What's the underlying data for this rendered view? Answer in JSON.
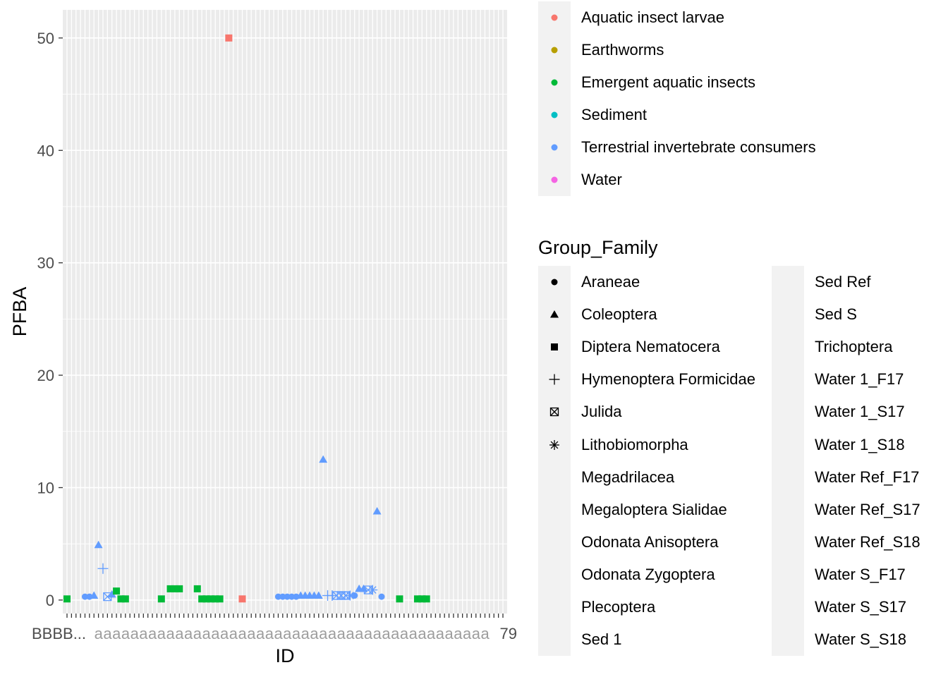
{
  "chart_data": {
    "type": "scatter",
    "xlabel": "ID",
    "ylabel": "PFBA",
    "ylim": [
      -1.2,
      52.5
    ],
    "y_ticks": [
      0,
      10,
      20,
      30,
      40,
      50
    ],
    "x_category_count": 98,
    "x_tick_labels_note": "overlapping illegible category labels",
    "x_tick_labels_visible": "BBBB...",
    "x_tick_label_end": "79",
    "grid": true,
    "panel_background": "#ebebeb",
    "color_legend": {
      "title": "",
      "entries": [
        {
          "label": "Aquatic insect larvae",
          "color": "#F8766D"
        },
        {
          "label": "Earthworms",
          "color": "#B79F00"
        },
        {
          "label": "Emergent aquatic insects",
          "color": "#00BA38"
        },
        {
          "label": "Sediment",
          "color": "#00BFC4"
        },
        {
          "label": "Terrestrial invertebrate consumers",
          "color": "#619CFF"
        },
        {
          "label": "Water",
          "color": "#F564E3"
        }
      ]
    },
    "shape_legend": {
      "title": "Group_Family",
      "entries": [
        {
          "label": "Araneae",
          "shape": "circle"
        },
        {
          "label": "Coleoptera",
          "shape": "triangle"
        },
        {
          "label": "Diptera Nematocera",
          "shape": "square"
        },
        {
          "label": "Hymenoptera Formicidae",
          "shape": "plus"
        },
        {
          "label": "Julida",
          "shape": "boxcross"
        },
        {
          "label": "Lithobiomorpha",
          "shape": "asterisk"
        },
        {
          "label": "Megadrilacea",
          "shape": "none"
        },
        {
          "label": "Megaloptera Sialidae",
          "shape": "none"
        },
        {
          "label": "Odonata Anisoptera",
          "shape": "none"
        },
        {
          "label": "Odonata Zygoptera",
          "shape": "none"
        },
        {
          "label": "Plecoptera",
          "shape": "none"
        },
        {
          "label": "Sed 1",
          "shape": "none"
        },
        {
          "label": "Sed Ref",
          "shape": "none"
        },
        {
          "label": "Sed S",
          "shape": "none"
        },
        {
          "label": "Trichoptera",
          "shape": "none"
        },
        {
          "label": "Water 1_F17",
          "shape": "none"
        },
        {
          "label": "Water 1_S17",
          "shape": "none"
        },
        {
          "label": "Water 1_S18",
          "shape": "none"
        },
        {
          "label": "Water Ref_F17",
          "shape": "none"
        },
        {
          "label": "Water Ref_S17",
          "shape": "none"
        },
        {
          "label": "Water Ref_S18",
          "shape": "none"
        },
        {
          "label": "Water S_F17",
          "shape": "none"
        },
        {
          "label": "Water S_S17",
          "shape": "none"
        },
        {
          "label": "Water S_S18",
          "shape": "none"
        }
      ]
    },
    "points": [
      {
        "x": 1,
        "y": 0.1,
        "group": "Emergent aquatic insects",
        "shape": "square"
      },
      {
        "x": 5,
        "y": 0.3,
        "group": "Terrestrial invertebrate consumers",
        "shape": "circle"
      },
      {
        "x": 6,
        "y": 0.3,
        "group": "Terrestrial invertebrate consumers",
        "shape": "circle"
      },
      {
        "x": 7,
        "y": 0.4,
        "group": "Terrestrial invertebrate consumers",
        "shape": "triangle"
      },
      {
        "x": 8,
        "y": 4.9,
        "group": "Terrestrial invertebrate consumers",
        "shape": "triangle"
      },
      {
        "x": 9,
        "y": 2.8,
        "group": "Terrestrial invertebrate consumers",
        "shape": "plus"
      },
      {
        "x": 10,
        "y": 0.3,
        "group": "Terrestrial invertebrate consumers",
        "shape": "boxcross"
      },
      {
        "x": 11,
        "y": 0.5,
        "group": "Terrestrial invertebrate consumers",
        "shape": "triangle"
      },
      {
        "x": 12,
        "y": 0.8,
        "group": "Emergent aquatic insects",
        "shape": "square"
      },
      {
        "x": 13,
        "y": 0.1,
        "group": "Emergent aquatic insects",
        "shape": "square"
      },
      {
        "x": 14,
        "y": 0.1,
        "group": "Emergent aquatic insects",
        "shape": "square"
      },
      {
        "x": 22,
        "y": 0.1,
        "group": "Emergent aquatic insects",
        "shape": "square"
      },
      {
        "x": 24,
        "y": 1.0,
        "group": "Emergent aquatic insects",
        "shape": "square"
      },
      {
        "x": 25,
        "y": 1.0,
        "group": "Emergent aquatic insects",
        "shape": "square"
      },
      {
        "x": 26,
        "y": 1.0,
        "group": "Emergent aquatic insects",
        "shape": "square"
      },
      {
        "x": 30,
        "y": 1.0,
        "group": "Emergent aquatic insects",
        "shape": "square"
      },
      {
        "x": 31,
        "y": 0.1,
        "group": "Emergent aquatic insects",
        "shape": "square"
      },
      {
        "x": 32,
        "y": 0.1,
        "group": "Emergent aquatic insects",
        "shape": "square"
      },
      {
        "x": 33,
        "y": 0.1,
        "group": "Emergent aquatic insects",
        "shape": "square"
      },
      {
        "x": 34,
        "y": 0.1,
        "group": "Emergent aquatic insects",
        "shape": "square"
      },
      {
        "x": 35,
        "y": 0.1,
        "group": "Emergent aquatic insects",
        "shape": "square"
      },
      {
        "x": 37,
        "y": 50.0,
        "group": "Aquatic insect larvae",
        "shape": "square"
      },
      {
        "x": 40,
        "y": 0.1,
        "group": "Aquatic insect larvae",
        "shape": "square"
      },
      {
        "x": 48,
        "y": 0.3,
        "group": "Terrestrial invertebrate consumers",
        "shape": "circle"
      },
      {
        "x": 49,
        "y": 0.3,
        "group": "Terrestrial invertebrate consumers",
        "shape": "circle"
      },
      {
        "x": 50,
        "y": 0.3,
        "group": "Terrestrial invertebrate consumers",
        "shape": "circle"
      },
      {
        "x": 51,
        "y": 0.3,
        "group": "Terrestrial invertebrate consumers",
        "shape": "circle"
      },
      {
        "x": 52,
        "y": 0.3,
        "group": "Terrestrial invertebrate consumers",
        "shape": "circle"
      },
      {
        "x": 53,
        "y": 0.4,
        "group": "Terrestrial invertebrate consumers",
        "shape": "triangle"
      },
      {
        "x": 54,
        "y": 0.4,
        "group": "Terrestrial invertebrate consumers",
        "shape": "triangle"
      },
      {
        "x": 55,
        "y": 0.4,
        "group": "Terrestrial invertebrate consumers",
        "shape": "triangle"
      },
      {
        "x": 56,
        "y": 0.4,
        "group": "Terrestrial invertebrate consumers",
        "shape": "triangle"
      },
      {
        "x": 57,
        "y": 0.4,
        "group": "Terrestrial invertebrate consumers",
        "shape": "triangle"
      },
      {
        "x": 58,
        "y": 12.5,
        "group": "Terrestrial invertebrate consumers",
        "shape": "triangle"
      },
      {
        "x": 59,
        "y": 0.4,
        "group": "Terrestrial invertebrate consumers",
        "shape": "plus"
      },
      {
        "x": 60,
        "y": 0.4,
        "group": "Terrestrial invertebrate consumers",
        "shape": "plus"
      },
      {
        "x": 61,
        "y": 0.4,
        "group": "Terrestrial invertebrate consumers",
        "shape": "boxcross"
      },
      {
        "x": 62,
        "y": 0.4,
        "group": "Terrestrial invertebrate consumers",
        "shape": "boxcross"
      },
      {
        "x": 63,
        "y": 0.4,
        "group": "Terrestrial invertebrate consumers",
        "shape": "boxcross"
      },
      {
        "x": 64,
        "y": 0.4,
        "group": "Terrestrial invertebrate consumers",
        "shape": "asterisk"
      },
      {
        "x": 65,
        "y": 0.4,
        "group": "Terrestrial invertebrate consumers",
        "shape": "circle"
      },
      {
        "x": 66,
        "y": 1.0,
        "group": "Terrestrial invertebrate consumers",
        "shape": "triangle"
      },
      {
        "x": 67,
        "y": 1.0,
        "group": "Terrestrial invertebrate consumers",
        "shape": "triangle"
      },
      {
        "x": 68,
        "y": 0.9,
        "group": "Terrestrial invertebrate consumers",
        "shape": "boxcross"
      },
      {
        "x": 69,
        "y": 0.9,
        "group": "Terrestrial invertebrate consumers",
        "shape": "asterisk"
      },
      {
        "x": 70,
        "y": 7.9,
        "group": "Terrestrial invertebrate consumers",
        "shape": "triangle"
      },
      {
        "x": 71,
        "y": 0.3,
        "group": "Terrestrial invertebrate consumers",
        "shape": "circle"
      },
      {
        "x": 75,
        "y": 0.1,
        "group": "Emergent aquatic insects",
        "shape": "square"
      },
      {
        "x": 79,
        "y": 0.1,
        "group": "Emergent aquatic insects",
        "shape": "square"
      },
      {
        "x": 80,
        "y": 0.1,
        "group": "Emergent aquatic insects",
        "shape": "square"
      },
      {
        "x": 81,
        "y": 0.1,
        "group": "Emergent aquatic insects",
        "shape": "square"
      }
    ]
  }
}
